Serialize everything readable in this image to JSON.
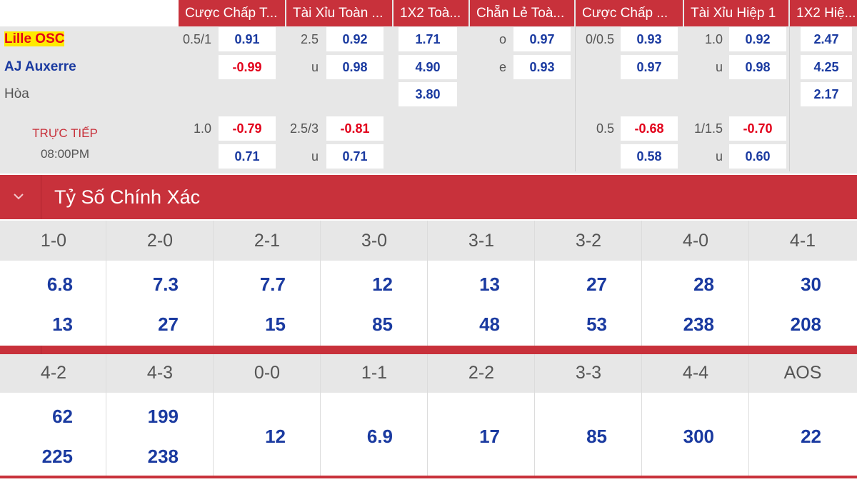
{
  "headers": [
    "Cược Chấp T...",
    "Tài Xỉu Toàn ...",
    "1X2 Toà...",
    "Chẵn Lẻ Toà...",
    "Cược Chấp ...",
    "Tài Xỉu Hiệp 1",
    "1X2 Hiệ..."
  ],
  "teams": {
    "home": "Lille OSC",
    "away": "AJ Auxerre",
    "draw": "Hòa",
    "live": "TRỰC TIẾP",
    "time": "08:00PM"
  },
  "main": {
    "ah_line": "0.5/1",
    "ah_home": "0.91",
    "ah_away": "-0.99",
    "ou_line": "2.5",
    "ou_over": "0.92",
    "ou_u": "u",
    "ou_under": "0.98",
    "x12_home": "1.71",
    "x12_away": "4.90",
    "x12_draw": "3.80",
    "oe_o": "o",
    "oe_odd": "0.97",
    "oe_e": "e",
    "oe_even": "0.93",
    "h1_ah_line": "0/0.5",
    "h1_ah_home": "0.93",
    "h1_ah_away": "0.97",
    "h1_ou_line": "1.0",
    "h1_ou_over": "0.92",
    "h1_ou_u": "u",
    "h1_ou_under": "0.98",
    "h1_x12_home": "2.47",
    "h1_x12_away": "4.25",
    "h1_x12_draw": "2.17"
  },
  "alt": {
    "ah_line": "1.0",
    "ah_home": "-0.79",
    "ah_away": "0.71",
    "ou_line": "2.5/3",
    "ou_over": "-0.81",
    "ou_u": "u",
    "ou_under": "0.71",
    "h1_ah_line": "0.5",
    "h1_ah_home": "-0.68",
    "h1_ah_away": "0.58",
    "h1_ou_line": "1/1.5",
    "h1_ou_over": "-0.70",
    "h1_ou_u": "u",
    "h1_ou_under": "0.60"
  },
  "correct_score": {
    "title": "Tỷ Số Chính Xác",
    "row1": [
      {
        "score": "1-0",
        "home": "6.8",
        "away": "13"
      },
      {
        "score": "2-0",
        "home": "7.3",
        "away": "27"
      },
      {
        "score": "2-1",
        "home": "7.7",
        "away": "15"
      },
      {
        "score": "3-0",
        "home": "12",
        "away": "85"
      },
      {
        "score": "3-1",
        "home": "13",
        "away": "48"
      },
      {
        "score": "3-2",
        "home": "27",
        "away": "53"
      },
      {
        "score": "4-0",
        "home": "28",
        "away": "238"
      },
      {
        "score": "4-1",
        "home": "30",
        "away": "208"
      }
    ],
    "row2": [
      {
        "score": "4-2",
        "home": "62",
        "away": "225"
      },
      {
        "score": "4-3",
        "home": "199",
        "away": "238"
      },
      {
        "score": "0-0",
        "single": "12"
      },
      {
        "score": "1-1",
        "single": "6.9"
      },
      {
        "score": "2-2",
        "single": "17"
      },
      {
        "score": "3-3",
        "single": "85"
      },
      {
        "score": "4-4",
        "single": "300"
      },
      {
        "score": "AOS",
        "single": "22"
      }
    ]
  },
  "colors": {
    "accent": "#c8313b",
    "odds_blue": "#1a3aa0",
    "odds_red": "#e2001a",
    "panel_gray": "#e7e7e7"
  },
  "icons": {
    "collapse": "chevron-down-icon"
  }
}
